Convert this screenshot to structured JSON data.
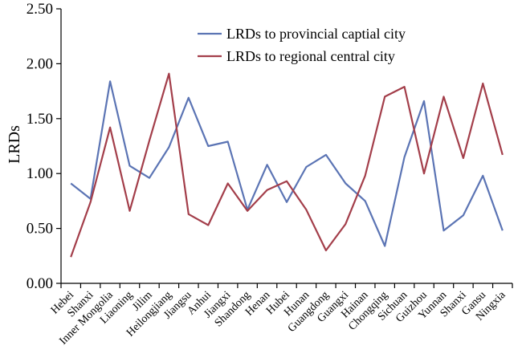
{
  "chart_data": {
    "type": "line",
    "ylabel": "LRDs",
    "xlabel": "",
    "ylim": [
      0,
      2.5
    ],
    "yticks": [
      "0.00",
      "0.50",
      "1.00",
      "1.50",
      "2.00",
      "2.50"
    ],
    "grid": false,
    "legend_position": "top-center",
    "categories": [
      "Hebei",
      "Shanxi",
      "Inner Mongolia",
      "Liaoning",
      "Jilim",
      "Heilongjiang",
      "Jiangsu",
      "Anhui",
      "Jiangxi",
      "Shandong",
      "Henan",
      "Hubei",
      "Hunan",
      "Guangdong",
      "Guangxi",
      "Hainan",
      "Chongqing",
      "Sichuan",
      "Guizhou",
      "Yunnan",
      "Shanxi",
      "Gansu",
      "Ningxia"
    ],
    "series": [
      {
        "name": "LRDs to provincial captial city",
        "color": "#5B74B4",
        "values": [
          0.91,
          0.77,
          1.84,
          1.07,
          0.96,
          1.24,
          1.69,
          1.25,
          1.29,
          0.67,
          1.08,
          0.74,
          1.06,
          1.17,
          0.91,
          0.75,
          0.34,
          1.15,
          1.66,
          0.48,
          0.62,
          0.98,
          0.48
        ]
      },
      {
        "name": "LRDs to regional central city",
        "color": "#A33E4A",
        "values": [
          0.24,
          0.74,
          1.42,
          0.66,
          1.3,
          1.91,
          0.63,
          0.53,
          0.91,
          0.66,
          0.85,
          0.93,
          0.67,
          0.3,
          0.54,
          0.98,
          1.7,
          1.79,
          1.0,
          1.7,
          1.14,
          1.82,
          1.17
        ]
      }
    ]
  }
}
